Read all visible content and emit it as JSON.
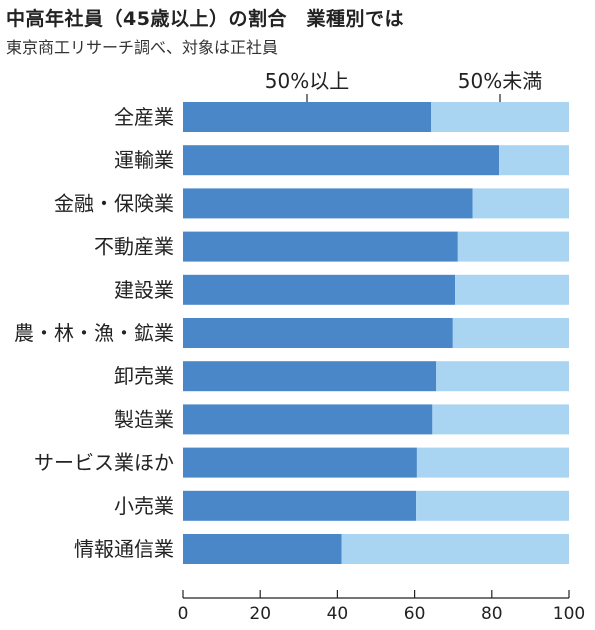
{
  "title": "中高年社員（45歳以上）の割合　業種別では",
  "subtitle": "東京商工リサーチ調べ、対象は正社員",
  "chart_data": {
    "type": "bar",
    "orientation": "horizontal",
    "stacked": true,
    "categories": [
      "全産業",
      "運輸業",
      "金融・保険業",
      "不動産業",
      "建設業",
      "農・林・漁・鉱業",
      "卸売業",
      "製造業",
      "サービス業ほか",
      "小売業",
      "情報通信業"
    ],
    "series": [
      {
        "name": "50%以上",
        "color": "#4a87c9",
        "values": [
          64.3,
          81.9,
          75.0,
          71.2,
          70.5,
          69.9,
          65.6,
          64.6,
          60.6,
          60.4,
          41.1
        ]
      },
      {
        "name": "50%未満",
        "color": "#a9d4f2",
        "values": [
          35.7,
          18.1,
          25.0,
          28.8,
          29.5,
          30.1,
          34.4,
          35.4,
          39.4,
          39.6,
          58.9
        ]
      }
    ],
    "xlim": [
      0,
      100
    ],
    "xticks": [
      "0",
      "20",
      "40",
      "60",
      "80",
      "100"
    ],
    "grid": false,
    "legend": "top, labels above bars"
  }
}
